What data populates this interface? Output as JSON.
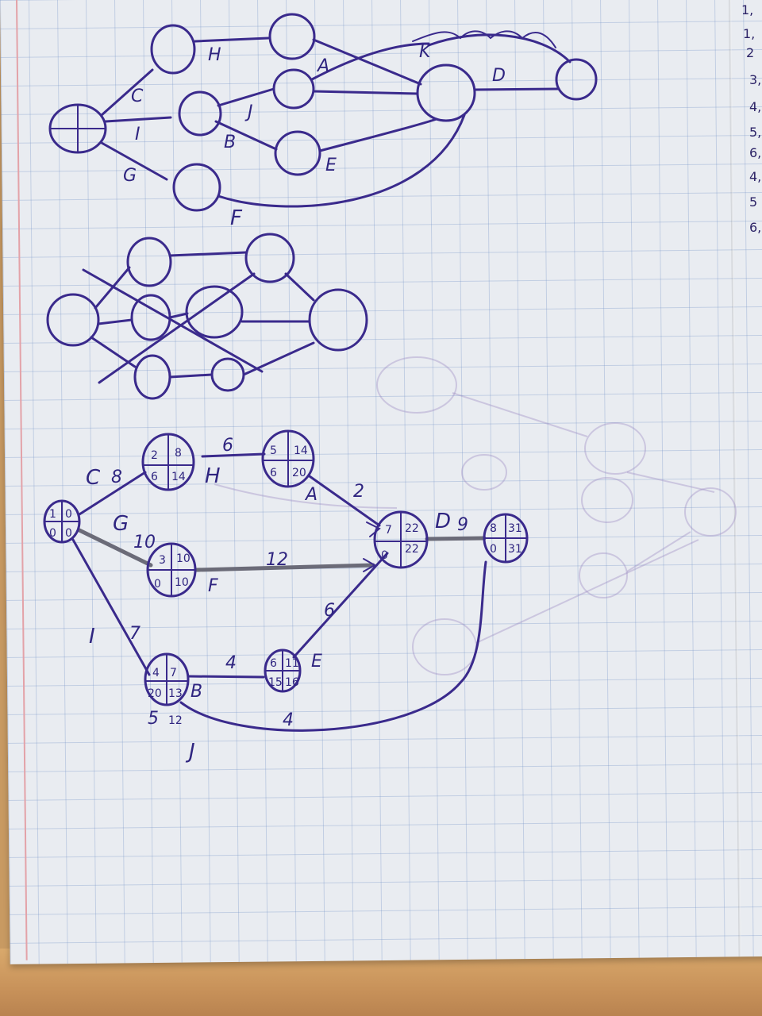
{
  "top_network": {
    "labels": [
      "C",
      "I",
      "G",
      "H",
      "A",
      "J",
      "B",
      "E",
      "F",
      "K",
      "D"
    ]
  },
  "bottom_network": {
    "edges": [
      {
        "name": "C",
        "value": "8"
      },
      {
        "name": "G",
        "value": "10"
      },
      {
        "name": "I",
        "value": "7"
      },
      {
        "name": "H",
        "value": "6"
      },
      {
        "name": "A",
        "value": "2"
      },
      {
        "name": "F",
        "value": "12"
      },
      {
        "name": "E",
        "value": "6"
      },
      {
        "name": "B",
        "value": "4"
      },
      {
        "name": "J",
        "value": "4"
      },
      {
        "name": "D",
        "value": "9"
      }
    ],
    "extra_values": [
      "12",
      "5"
    ],
    "nodes": [
      {
        "id": "start",
        "cells": [
          "1",
          "0",
          "0",
          "0"
        ]
      },
      {
        "id": "n2",
        "cells": [
          "2",
          "8",
          "6",
          "14"
        ]
      },
      {
        "id": "n5",
        "cells": [
          "5",
          "14",
          "6",
          "20"
        ]
      },
      {
        "id": "n3",
        "cells": [
          "3",
          "10",
          "0",
          "10"
        ]
      },
      {
        "id": "n7",
        "cells": [
          "7",
          "22",
          "0",
          "22"
        ]
      },
      {
        "id": "n8",
        "cells": [
          "8",
          "31",
          "0",
          "31"
        ]
      },
      {
        "id": "n4",
        "cells": [
          "4",
          "7",
          "20",
          "13"
        ]
      },
      {
        "id": "n6",
        "cells": [
          "6",
          "11",
          "15",
          "16"
        ]
      }
    ]
  },
  "margin_numbers": [
    "1,",
    "1,",
    "2",
    "3,",
    "4,",
    "5,",
    "6,",
    "4,",
    "5",
    "6,"
  ]
}
